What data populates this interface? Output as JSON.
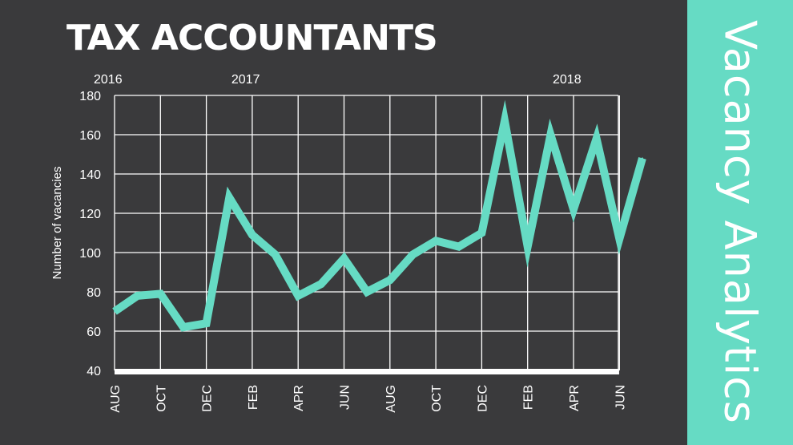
{
  "header": {
    "title": "TAX ACCOUNTANTS"
  },
  "brand": {
    "text": "Vacancy Analytics"
  },
  "colors": {
    "background": "#3a3a3c",
    "accent": "#66dbc4",
    "text": "#ffffff"
  },
  "chart_data": {
    "type": "line",
    "title": "TAX ACCOUNTANTS",
    "ylabel": "Number of vacancies",
    "xlabel": "",
    "ylim": [
      40,
      180
    ],
    "yticks": [
      40,
      60,
      80,
      100,
      120,
      140,
      160,
      180
    ],
    "grid": true,
    "x": [
      "2016-08",
      "2016-09",
      "2016-10",
      "2016-11",
      "2016-12",
      "2017-01",
      "2017-02",
      "2017-03",
      "2017-04",
      "2017-05",
      "2017-06",
      "2017-07",
      "2017-08",
      "2017-09",
      "2017-10",
      "2017-11",
      "2017-12",
      "2018-01",
      "2018-02",
      "2018-03",
      "2018-04",
      "2018-05",
      "2018-06",
      "2018-07"
    ],
    "tick_labels": [
      "AUG",
      "OCT",
      "DEC",
      "FEB",
      "APR",
      "JUN",
      "AUG",
      "OCT",
      "DEC",
      "FEB",
      "APR",
      "JUN"
    ],
    "tick_dates": [
      "2016-08",
      "2016-10",
      "2016-12",
      "2017-02",
      "2017-04",
      "2017-06",
      "2017-08",
      "2017-10",
      "2017-12",
      "2018-02",
      "2018-04",
      "2018-06"
    ],
    "year_labels": [
      {
        "label": "2016",
        "date": "2016-08"
      },
      {
        "label": "2017",
        "date": "2017-02"
      },
      {
        "label": "2018",
        "date": "2018-04"
      }
    ],
    "series": [
      {
        "values": [
          70,
          78,
          79,
          62,
          64,
          128,
          109,
          99,
          78,
          84,
          97,
          80,
          86,
          99,
          106,
          103,
          110,
          167,
          103,
          160,
          122,
          158,
          107,
          148
        ]
      }
    ]
  }
}
